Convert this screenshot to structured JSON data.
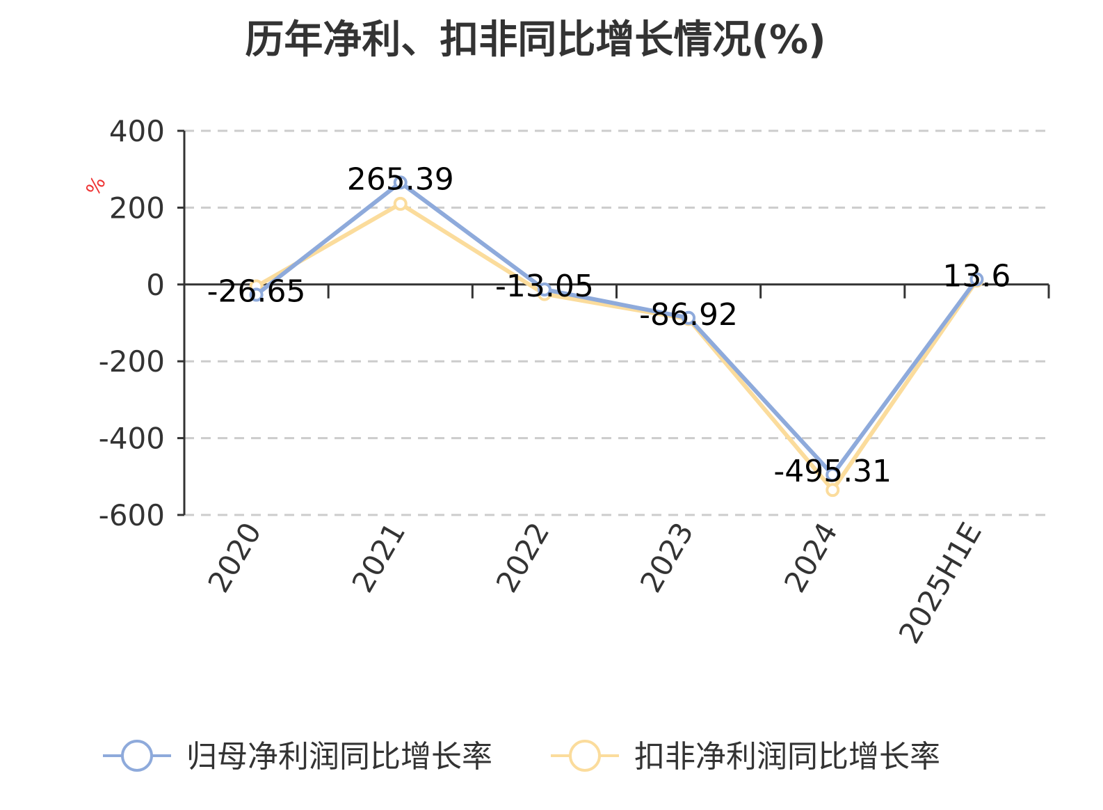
{
  "chart_data": {
    "type": "line",
    "title": "历年净利、扣非同比增长情况(%)",
    "ylabel": "%",
    "ylim": [
      -600,
      400
    ],
    "yticks": [
      400,
      200,
      0,
      -200,
      -400,
      -600
    ],
    "categories": [
      "2020",
      "2021",
      "2022",
      "2023",
      "2024",
      "2025H1E"
    ],
    "series": [
      {
        "name": "归母净利润同比增长率",
        "color": "#8eaadb",
        "values": [
          -26.65,
          265.39,
          -13.05,
          -86.92,
          -495.31,
          13.6
        ],
        "show_labels": true
      },
      {
        "name": "扣非净利润同比增长率",
        "color": "#fbdc9c",
        "values": [
          -5,
          210,
          -25,
          -90,
          -535,
          10
        ],
        "show_labels": false
      }
    ],
    "grid": true,
    "legend_position": "bottom"
  }
}
